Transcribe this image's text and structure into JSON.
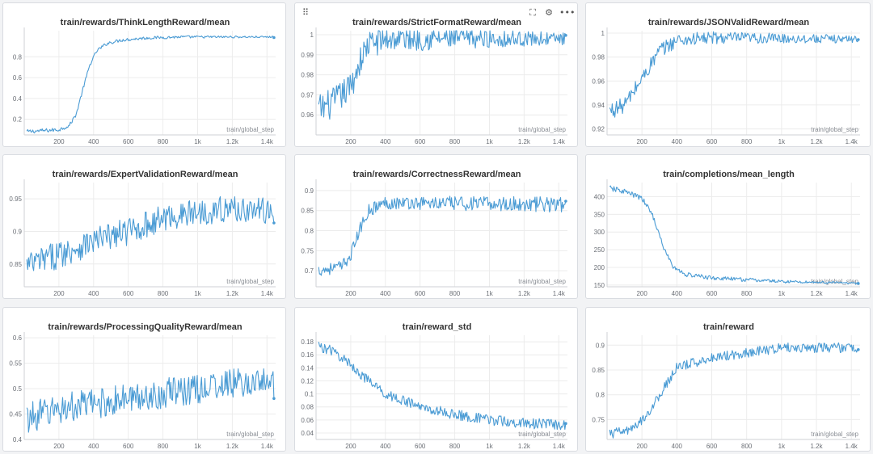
{
  "accent": "#4a9bd4",
  "toolbar": {
    "drag_handle_icon": "drag-handle-icon",
    "fullscreen_icon": "fullscreen-icon",
    "settings_icon": "gear-icon",
    "more_icon": "more-icon"
  },
  "chart_data": [
    {
      "type": "line",
      "title": "train/rewards/ThinkLengthReward/mean",
      "xlabel": "train/global_step",
      "xlim": [
        0,
        1450
      ],
      "ylim": [
        0.05,
        1.05
      ],
      "xticks": [
        200,
        400,
        600,
        800,
        1000,
        1200,
        1400
      ],
      "xtick_labels": [
        "200",
        "400",
        "600",
        "800",
        "1k",
        "1.2k",
        "1.4k"
      ],
      "yticks": [
        0.2,
        0.4,
        0.6,
        0.8
      ],
      "ytick_labels": [
        "0.2",
        "0.4",
        "0.6",
        "0.8"
      ],
      "anchors": [
        [
          0,
          0.08
        ],
        [
          100,
          0.09
        ],
        [
          200,
          0.1
        ],
        [
          260,
          0.14
        ],
        [
          300,
          0.25
        ],
        [
          340,
          0.5
        ],
        [
          380,
          0.73
        ],
        [
          420,
          0.86
        ],
        [
          480,
          0.93
        ],
        [
          560,
          0.96
        ],
        [
          700,
          0.98
        ],
        [
          900,
          0.99
        ],
        [
          1450,
          0.99
        ]
      ],
      "noise": [
        0.02,
        0.008
      ]
    },
    {
      "type": "line",
      "title": "train/rewards/StrictFormatReward/mean",
      "xlabel": "train/global_step",
      "xlim": [
        0,
        1450
      ],
      "ylim": [
        0.95,
        1.002
      ],
      "xticks": [
        200,
        400,
        600,
        800,
        1000,
        1200,
        1400
      ],
      "xtick_labels": [
        "200",
        "400",
        "600",
        "800",
        "1k",
        "1.2k",
        "1.4k"
      ],
      "yticks": [
        0.96,
        0.97,
        0.98,
        0.99,
        1.0
      ],
      "ytick_labels": [
        "0.96",
        "0.97",
        "0.98",
        "0.99",
        "1"
      ],
      "anchors": [
        [
          0,
          0.962
        ],
        [
          100,
          0.966
        ],
        [
          200,
          0.974
        ],
        [
          250,
          0.986
        ],
        [
          300,
          0.995
        ],
        [
          400,
          0.998
        ],
        [
          1450,
          0.998
        ]
      ],
      "noise": [
        0.008,
        0.003
      ]
    },
    {
      "type": "line",
      "title": "train/rewards/JSONValidReward/mean",
      "xlabel": "train/global_step",
      "xlim": [
        0,
        1450
      ],
      "ylim": [
        0.915,
        1.002
      ],
      "xticks": [
        200,
        400,
        600,
        800,
        1000,
        1200,
        1400
      ],
      "xtick_labels": [
        "200",
        "400",
        "600",
        "800",
        "1k",
        "1.2k",
        "1.4k"
      ],
      "yticks": [
        0.92,
        0.94,
        0.96,
        0.98,
        1.0
      ],
      "ytick_labels": [
        "0.92",
        "0.94",
        "0.96",
        "0.98",
        "1"
      ],
      "anchors": [
        [
          0,
          0.934
        ],
        [
          100,
          0.94
        ],
        [
          200,
          0.962
        ],
        [
          300,
          0.985
        ],
        [
          400,
          0.994
        ],
        [
          600,
          0.996
        ],
        [
          1450,
          0.995
        ]
      ],
      "noise": [
        0.007,
        0.003
      ]
    },
    {
      "type": "line",
      "title": "train/rewards/ExpertValidationReward/mean",
      "xlabel": "train/global_step",
      "xlim": [
        0,
        1450
      ],
      "ylim": [
        0.815,
        0.975
      ],
      "xticks": [
        200,
        400,
        600,
        800,
        1000,
        1200,
        1400
      ],
      "xtick_labels": [
        "200",
        "400",
        "600",
        "800",
        "1k",
        "1.2k",
        "1.4k"
      ],
      "yticks": [
        0.85,
        0.9,
        0.95
      ],
      "ytick_labels": [
        "0.85",
        "0.9",
        "0.95"
      ],
      "anchors": [
        [
          0,
          0.845
        ],
        [
          200,
          0.865
        ],
        [
          400,
          0.885
        ],
        [
          600,
          0.9
        ],
        [
          800,
          0.92
        ],
        [
          1000,
          0.93
        ],
        [
          1200,
          0.935
        ],
        [
          1450,
          0.93
        ]
      ],
      "noise": [
        0.022,
        0.02
      ]
    },
    {
      "type": "line",
      "title": "train/rewards/CorrectnessReward/mean",
      "xlabel": "train/global_step",
      "xlim": [
        0,
        1450
      ],
      "ylim": [
        0.66,
        0.92
      ],
      "xticks": [
        200,
        400,
        600,
        800,
        1000,
        1200,
        1400
      ],
      "xtick_labels": [
        "200",
        "400",
        "600",
        "800",
        "1k",
        "1.2k",
        "1.4k"
      ],
      "yticks": [
        0.7,
        0.75,
        0.8,
        0.85,
        0.9
      ],
      "ytick_labels": [
        "0.7",
        "0.75",
        "0.8",
        "0.85",
        "0.9"
      ],
      "anchors": [
        [
          0,
          0.7
        ],
        [
          150,
          0.71
        ],
        [
          200,
          0.74
        ],
        [
          250,
          0.8
        ],
        [
          300,
          0.85
        ],
        [
          400,
          0.87
        ],
        [
          1450,
          0.865
        ]
      ],
      "noise": [
        0.015,
        0.02
      ]
    },
    {
      "type": "line",
      "title": "train/completions/mean_length",
      "xlabel": "train/global_step",
      "xlim": [
        0,
        1450
      ],
      "ylim": [
        145,
        440
      ],
      "xticks": [
        200,
        400,
        600,
        800,
        1000,
        1200,
        1400
      ],
      "xtick_labels": [
        "200",
        "400",
        "600",
        "800",
        "1k",
        "1.2k",
        "1.4k"
      ],
      "yticks": [
        150,
        200,
        250,
        300,
        350,
        400
      ],
      "ytick_labels": [
        "150",
        "200",
        "250",
        "300",
        "350",
        "400"
      ],
      "anchors": [
        [
          0,
          425
        ],
        [
          100,
          415
        ],
        [
          200,
          395
        ],
        [
          260,
          350
        ],
        [
          320,
          260
        ],
        [
          380,
          200
        ],
        [
          450,
          180
        ],
        [
          600,
          170
        ],
        [
          800,
          165
        ],
        [
          1000,
          160
        ],
        [
          1450,
          155
        ]
      ],
      "noise": [
        8,
        3
      ]
    },
    {
      "type": "line",
      "title": "train/rewards/ProcessingQualityReward/mean",
      "xlabel": "train/global_step",
      "xlim": [
        0,
        1450
      ],
      "ylim": [
        0.4,
        0.605
      ],
      "xticks": [
        200,
        400,
        600,
        800,
        1000,
        1200,
        1400
      ],
      "xtick_labels": [
        "200",
        "400",
        "600",
        "800",
        "1k",
        "1.2k",
        "1.4k"
      ],
      "yticks": [
        0.4,
        0.45,
        0.5,
        0.55,
        0.6
      ],
      "ytick_labels": [
        "0.4",
        "0.45",
        "0.5",
        "0.55",
        "0.6"
      ],
      "anchors": [
        [
          0,
          0.44
        ],
        [
          200,
          0.46
        ],
        [
          400,
          0.47
        ],
        [
          600,
          0.48
        ],
        [
          800,
          0.49
        ],
        [
          1000,
          0.5
        ],
        [
          1200,
          0.51
        ],
        [
          1450,
          0.51
        ]
      ],
      "noise": [
        0.03,
        0.03
      ]
    },
    {
      "type": "line",
      "title": "train/reward_std",
      "xlabel": "train/global_step",
      "xlim": [
        0,
        1450
      ],
      "ylim": [
        0.03,
        0.19
      ],
      "xticks": [
        200,
        400,
        600,
        800,
        1000,
        1200,
        1400
      ],
      "xtick_labels": [
        "200",
        "400",
        "600",
        "800",
        "1k",
        "1.2k",
        "1.4k"
      ],
      "yticks": [
        0.04,
        0.06,
        0.08,
        0.1,
        0.12,
        0.14,
        0.16,
        0.18
      ],
      "ytick_labels": [
        "0.04",
        "0.06",
        "0.08",
        "0.1",
        "0.12",
        "0.14",
        "0.16",
        "0.18"
      ],
      "anchors": [
        [
          0,
          0.175
        ],
        [
          100,
          0.165
        ],
        [
          200,
          0.145
        ],
        [
          300,
          0.12
        ],
        [
          400,
          0.1
        ],
        [
          600,
          0.08
        ],
        [
          800,
          0.068
        ],
        [
          1000,
          0.06
        ],
        [
          1200,
          0.055
        ],
        [
          1450,
          0.052
        ]
      ],
      "noise": [
        0.008,
        0.008
      ]
    },
    {
      "type": "line",
      "title": "train/reward",
      "xlabel": "train/global_step",
      "xlim": [
        0,
        1450
      ],
      "ylim": [
        0.71,
        0.92
      ],
      "xticks": [
        200,
        400,
        600,
        800,
        1000,
        1200,
        1400
      ],
      "xtick_labels": [
        "200",
        "400",
        "600",
        "800",
        "1k",
        "1.2k",
        "1.4k"
      ],
      "yticks": [
        0.75,
        0.8,
        0.85,
        0.9
      ],
      "ytick_labels": [
        "0.75",
        "0.8",
        "0.85",
        "0.9"
      ],
      "anchors": [
        [
          0,
          0.72
        ],
        [
          150,
          0.73
        ],
        [
          250,
          0.77
        ],
        [
          320,
          0.81
        ],
        [
          400,
          0.855
        ],
        [
          600,
          0.875
        ],
        [
          800,
          0.885
        ],
        [
          1000,
          0.895
        ],
        [
          1450,
          0.895
        ]
      ],
      "noise": [
        0.01,
        0.01
      ]
    }
  ]
}
